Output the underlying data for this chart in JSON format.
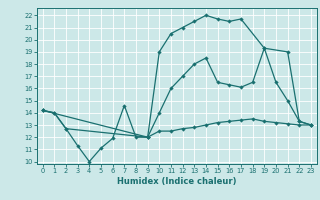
{
  "xlabel": "Humidex (Indice chaleur)",
  "background_color": "#cce8e8",
  "grid_color": "#ffffff",
  "line_color": "#1a7070",
  "xlim": [
    -0.5,
    23.5
  ],
  "ylim": [
    9.8,
    22.6
  ],
  "yticks": [
    10,
    11,
    12,
    13,
    14,
    15,
    16,
    17,
    18,
    19,
    20,
    21,
    22
  ],
  "xticks": [
    0,
    1,
    2,
    3,
    4,
    5,
    6,
    7,
    8,
    9,
    10,
    11,
    12,
    13,
    14,
    15,
    16,
    17,
    18,
    19,
    20,
    21,
    22,
    23
  ],
  "line1_x": [
    0,
    1,
    2,
    3,
    4,
    5,
    6,
    7,
    8,
    9,
    10,
    11,
    12,
    13,
    14,
    15,
    16,
    17,
    18,
    19,
    20,
    21,
    22,
    23
  ],
  "line1_y": [
    14.2,
    14.0,
    12.7,
    11.3,
    10.0,
    11.1,
    11.9,
    14.6,
    12.0,
    12.0,
    12.5,
    12.5,
    12.7,
    12.8,
    13.0,
    13.2,
    13.3,
    13.4,
    13.5,
    13.3,
    13.2,
    13.1,
    13.0,
    13.0
  ],
  "line2_x": [
    0,
    1,
    2,
    9,
    10,
    11,
    12,
    13,
    14,
    15,
    16,
    17,
    18,
    19,
    20,
    21,
    22,
    23
  ],
  "line2_y": [
    14.2,
    14.0,
    12.7,
    12.0,
    14.0,
    16.0,
    17.0,
    18.0,
    18.5,
    16.5,
    16.3,
    16.1,
    16.5,
    19.3,
    16.5,
    15.0,
    13.3,
    13.0
  ],
  "line3_x": [
    0,
    9,
    10,
    11,
    12,
    13,
    14,
    15,
    16,
    17,
    19,
    21,
    22,
    23
  ],
  "line3_y": [
    14.2,
    12.0,
    19.0,
    20.5,
    21.0,
    21.5,
    22.0,
    21.7,
    21.5,
    21.7,
    19.3,
    19.0,
    13.3,
    13.0
  ],
  "xlabel_fontsize": 6.0,
  "tick_fontsize": 4.8,
  "marker_size": 2.2,
  "linewidth": 0.9
}
